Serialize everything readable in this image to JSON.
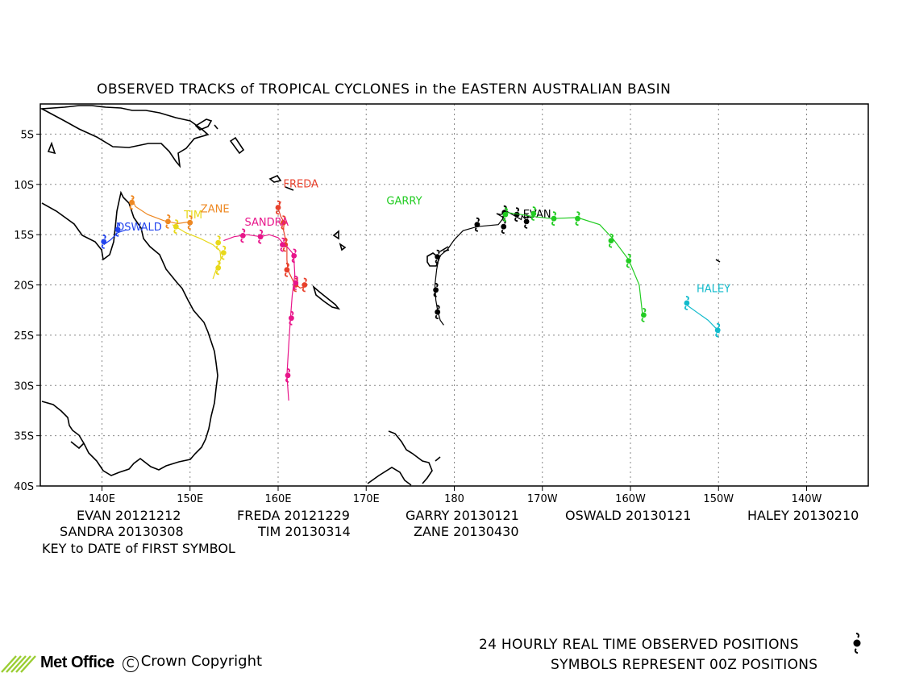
{
  "title": "OBSERVED TRACKS of TROPICAL CYCLONES in the EASTERN AUSTRALIAN BASIN",
  "map": {
    "lon_range": [
      133,
      227
    ],
    "lat_range": [
      -40,
      -2
    ],
    "lat_labels": [
      "5S",
      "10S",
      "15S",
      "20S",
      "25S",
      "30S",
      "35S",
      "40S"
    ],
    "lon_labels": [
      "140E",
      "150E",
      "160E",
      "170E",
      "180",
      "170W",
      "160W",
      "150W",
      "140W"
    ],
    "grid": true
  },
  "storms": [
    {
      "name": "EVAN",
      "color": "#000000",
      "label": "EVAN",
      "label_pos": [
        -13.3,
        187.8
      ],
      "track": [
        [
          -13.3,
          188.8
        ],
        [
          -13.2,
          188.3
        ],
        [
          -13.4,
          188.0
        ],
        [
          -13.1,
          187.7
        ],
        [
          -13.5,
          187.6
        ],
        [
          -12.7,
          186.0
        ],
        [
          -13.0,
          185.3
        ],
        [
          -12.9,
          184.8
        ],
        [
          -13.3,
          185.6
        ],
        [
          -14.0,
          185.0
        ],
        [
          -14.2,
          182.6
        ],
        [
          -14.6,
          181.0
        ],
        [
          -15.5,
          180.0
        ],
        [
          -16.5,
          179.2
        ],
        [
          -17.0,
          178.5
        ],
        [
          -17.5,
          178.2
        ],
        [
          -18.5,
          178.0
        ],
        [
          -20.0,
          177.8
        ],
        [
          -21.5,
          177.9
        ],
        [
          -22.5,
          178.1
        ],
        [
          -23.5,
          178.4
        ],
        [
          -24.0,
          178.8
        ]
      ],
      "symbols": [
        [
          -12.8,
          185.7
        ],
        [
          -13.7,
          188.2
        ],
        [
          -14.0,
          182.6
        ],
        [
          -13.0,
          187.1
        ],
        [
          -17.2,
          178.1
        ],
        [
          -20.5,
          177.9
        ],
        [
          -22.7,
          178.1
        ],
        [
          -14.2,
          185.6
        ]
      ]
    },
    {
      "name": "FREDA",
      "color": "#e8412c",
      "label": "FREDA",
      "label_pos": [
        -10.3,
        160.6
      ],
      "track": [
        [
          -11.7,
          160.3
        ],
        [
          -12.4,
          160.0
        ],
        [
          -13.2,
          160.3
        ],
        [
          -13.8,
          160.7
        ],
        [
          -14.5,
          160.6
        ],
        [
          -15.3,
          160.8
        ],
        [
          -16.2,
          161.0
        ],
        [
          -17.5,
          161.0
        ],
        [
          -18.5,
          161.1
        ],
        [
          -19.8,
          161.8
        ],
        [
          -20.3,
          162.5
        ],
        [
          -20.2,
          163.0
        ]
      ],
      "symbols": [
        [
          -12.3,
          160.0
        ],
        [
          -13.8,
          160.6
        ],
        [
          -16.0,
          160.8
        ],
        [
          -18.5,
          161.0
        ],
        [
          -20.0,
          162.0
        ],
        [
          -20.0,
          163.0
        ]
      ]
    },
    {
      "name": "GARRY",
      "color": "#22cc22",
      "label": "GARRY",
      "label_pos": [
        -12.0,
        172.3
      ],
      "track": [
        [
          -12.8,
          186.0
        ],
        [
          -13.0,
          187.6
        ],
        [
          -13.2,
          189.0
        ],
        [
          -13.4,
          191.0
        ],
        [
          -13.3,
          194.0
        ],
        [
          -14.0,
          196.5
        ],
        [
          -15.4,
          198.0
        ],
        [
          -17.5,
          199.8
        ],
        [
          -20.0,
          201.0
        ],
        [
          -23.2,
          201.4
        ]
      ],
      "symbols": [
        [
          -13.0,
          185.8
        ],
        [
          -12.9,
          189.0
        ],
        [
          -13.4,
          191.3
        ],
        [
          -13.4,
          194.0
        ],
        [
          -15.6,
          197.8
        ],
        [
          -17.6,
          199.8
        ],
        [
          -23.0,
          201.5
        ]
      ]
    },
    {
      "name": "OSWALD",
      "color": "#2244ee",
      "label": "OSWALD",
      "label_pos": [
        -14.6,
        141.6
      ],
      "track": [
        [
          -16.0,
          140.2
        ],
        [
          -15.5,
          141.0
        ],
        [
          -14.8,
          141.8
        ],
        [
          -14.5,
          142.8
        ]
      ],
      "symbols": [
        [
          -15.7,
          140.2
        ],
        [
          -14.5,
          141.8
        ]
      ]
    },
    {
      "name": "HALEY",
      "color": "#11bbcc",
      "label": "HALEY",
      "label_pos": [
        -20.7,
        207.5
      ],
      "track": [
        [
          -22.0,
          206.4
        ],
        [
          -22.7,
          207.5
        ],
        [
          -23.5,
          208.8
        ],
        [
          -24.4,
          209.8
        ],
        [
          -24.8,
          210.1
        ]
      ],
      "symbols": [
        [
          -21.8,
          206.4
        ],
        [
          -24.5,
          209.9
        ]
      ]
    },
    {
      "name": "SANDRA",
      "color": "#e8158a",
      "label": "SANDRA",
      "label_pos": [
        -14.1,
        156.2
      ],
      "track": [
        [
          -15.6,
          153.8
        ],
        [
          -15.2,
          155.0
        ],
        [
          -15.0,
          156.5
        ],
        [
          -15.2,
          158.0
        ],
        [
          -15.0,
          159.0
        ],
        [
          -15.3,
          160.0
        ],
        [
          -15.8,
          160.5
        ],
        [
          -16.2,
          161.0
        ],
        [
          -16.8,
          161.6
        ],
        [
          -17.5,
          161.8
        ],
        [
          -19.0,
          161.9
        ],
        [
          -21.0,
          161.6
        ],
        [
          -23.3,
          161.4
        ],
        [
          -26.0,
          161.2
        ],
        [
          -29.0,
          161.0
        ],
        [
          -31.5,
          161.2
        ]
      ],
      "symbols": [
        [
          -15.1,
          156.0
        ],
        [
          -15.2,
          158.0
        ],
        [
          -16.0,
          160.5
        ],
        [
          -17.1,
          161.8
        ],
        [
          -19.8,
          162.0
        ],
        [
          -23.3,
          161.5
        ],
        [
          -29.0,
          161.1
        ]
      ]
    },
    {
      "name": "TIM",
      "color": "#e8d81a",
      "label": "TIM",
      "label_pos": [
        -13.4,
        149.3
      ],
      "track": [
        [
          -14.0,
          148.0
        ],
        [
          -14.8,
          149.5
        ],
        [
          -15.4,
          151.2
        ],
        [
          -16.0,
          152.6
        ],
        [
          -16.6,
          153.4
        ],
        [
          -17.4,
          153.5
        ],
        [
          -18.4,
          153.0
        ],
        [
          -19.4,
          152.6
        ]
      ],
      "symbols": [
        [
          -14.2,
          148.4
        ],
        [
          -15.8,
          153.2
        ],
        [
          -16.8,
          153.8
        ],
        [
          -18.3,
          153.2
        ]
      ]
    },
    {
      "name": "ZANE",
      "color": "#ee8822",
      "label": "ZANE",
      "label_pos": [
        -12.8,
        151.2
      ],
      "track": [
        [
          -11.4,
          143.4
        ],
        [
          -12.2,
          143.8
        ],
        [
          -13.0,
          145.2
        ],
        [
          -13.6,
          147.0
        ],
        [
          -13.9,
          148.6
        ],
        [
          -13.7,
          150.2
        ]
      ],
      "symbols": [
        [
          -11.8,
          143.4
        ],
        [
          -13.7,
          147.5
        ],
        [
          -13.8,
          150.0
        ]
      ]
    }
  ],
  "legend": {
    "rows": [
      [
        "EVAN 20121212",
        "FREDA 20121229",
        "GARRY 20130121",
        "OSWALD 20130121",
        "HALEY 20130210"
      ],
      [
        "SANDRA 20130308",
        "TIM 20130314",
        "ZANE 20130430"
      ]
    ],
    "key_text": "KEY to DATE of FIRST SYMBOL"
  },
  "footer": {
    "line1": "24 HOURLY REAL TIME OBSERVED POSITIONS",
    "line2": "SYMBOLS REPRESENT 00Z POSITIONS",
    "brand": "Met Office",
    "copyright_symbol": "C",
    "copyright": "Crown Copyright"
  }
}
